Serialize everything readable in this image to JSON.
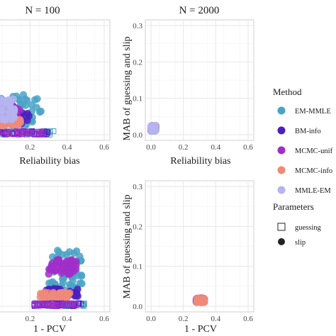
{
  "chart_data": {
    "type": "scatter",
    "strip_titles": [
      "N = 100",
      "N = 2000"
    ],
    "y_axis_label": "MAB of guessing and slip",
    "x_axis_labels": [
      "Reliability bias",
      "1 - PCV"
    ],
    "x_ticks": [
      "0.0",
      "0.2",
      "0.4",
      "0.6"
    ],
    "x_ticks_left_visible": [
      "0",
      "0.2",
      "0.4",
      "0.6"
    ],
    "y_ticks": [
      "0.0",
      "0.1",
      "0.2",
      "0.3"
    ],
    "xlim": [
      0,
      0.6
    ],
    "ylim": [
      0,
      0.3
    ],
    "legend_method": {
      "title": "Method",
      "entries": [
        {
          "label": "EM-MMLE",
          "color": "#4aa3c7"
        },
        {
          "label": "BM-info",
          "color": "#4b1fbf"
        },
        {
          "label": "MCMC-unif",
          "color": "#a02ec8"
        },
        {
          "label": "MCMC-info",
          "color": "#f08a78"
        },
        {
          "label": "MMLE-EM",
          "color": "#b5b3f0"
        }
      ]
    },
    "legend_parameters": {
      "title": "Parameters",
      "entries": [
        {
          "label": "guessing",
          "shape": "square-open"
        },
        {
          "label": "slip",
          "shape": "circle-filled"
        }
      ]
    },
    "panels": [
      {
        "name": "top-left",
        "strip": "N = 100",
        "xlabel": "Reliability bias",
        "clusters": [
          {
            "method": "EM-MMLE",
            "shape": "circle",
            "x": [
              0.0,
              0.26
            ],
            "y": [
              0.02,
              0.11
            ]
          },
          {
            "method": "BM-info",
            "shape": "circle",
            "x": [
              0.0,
              0.2
            ],
            "y": [
              0.03,
              0.06
            ]
          },
          {
            "method": "MCMC-unif",
            "shape": "circle",
            "x": [
              0.0,
              0.15
            ],
            "y": [
              0.04,
              0.08
            ]
          },
          {
            "method": "MCMC-info",
            "shape": "circle",
            "x": [
              0.0,
              0.15
            ],
            "y": [
              0.025,
              0.045
            ]
          },
          {
            "method": "MMLE-EM",
            "shape": "circle",
            "x": [
              0.0,
              0.12
            ],
            "y": [
              0.04,
              0.1
            ]
          },
          {
            "method": "EM-MMLE",
            "shape": "square",
            "x": [
              0.0,
              0.33
            ],
            "y": [
              0.0,
              0.01
            ]
          },
          {
            "method": "BM-info",
            "shape": "square",
            "x": [
              0.0,
              0.3
            ],
            "y": [
              0.0,
              0.01
            ]
          },
          {
            "method": "MCMC-unif",
            "shape": "square",
            "x": [
              0.0,
              0.28
            ],
            "y": [
              0.0,
              0.01
            ]
          }
        ]
      },
      {
        "name": "top-right",
        "strip": "N = 2000",
        "xlabel": "Reliability bias",
        "clusters": [
          {
            "method": "EM-MMLE",
            "shape": "circle",
            "x": [
              0.0,
              0.03
            ],
            "y": [
              0.01,
              0.025
            ]
          },
          {
            "method": "BM-info",
            "shape": "circle",
            "x": [
              0.0,
              0.03
            ],
            "y": [
              0.01,
              0.025
            ]
          },
          {
            "method": "MCMC-unif",
            "shape": "circle",
            "x": [
              0.0,
              0.03
            ],
            "y": [
              0.01,
              0.025
            ]
          },
          {
            "method": "MCMC-info",
            "shape": "circle",
            "x": [
              0.0,
              0.03
            ],
            "y": [
              0.01,
              0.025
            ]
          },
          {
            "method": "MMLE-EM",
            "shape": "circle",
            "x": [
              0.0,
              0.03
            ],
            "y": [
              0.01,
              0.025
            ]
          }
        ]
      },
      {
        "name": "bottom-left",
        "strip": "",
        "xlabel": "1 - PCV",
        "clusters": [
          {
            "method": "EM-MMLE",
            "shape": "circle",
            "x": [
              0.3,
              0.48
            ],
            "y": [
              0.04,
              0.14
            ]
          },
          {
            "method": "MCMC-unif",
            "shape": "circle",
            "x": [
              0.3,
              0.45
            ],
            "y": [
              0.08,
              0.12
            ]
          },
          {
            "method": "BM-info",
            "shape": "circle",
            "x": [
              0.28,
              0.46
            ],
            "y": [
              0.025,
              0.045
            ]
          },
          {
            "method": "MCMC-info",
            "shape": "circle",
            "x": [
              0.25,
              0.42
            ],
            "y": [
              0.01,
              0.035
            ]
          },
          {
            "method": "EM-MMLE",
            "shape": "square",
            "x": [
              0.22,
              0.5
            ],
            "y": [
              0.0,
              0.008
            ]
          },
          {
            "method": "BM-info",
            "shape": "square",
            "x": [
              0.22,
              0.48
            ],
            "y": [
              0.0,
              0.008
            ]
          },
          {
            "method": "MCMC-unif",
            "shape": "square",
            "x": [
              0.22,
              0.45
            ],
            "y": [
              0.0,
              0.008
            ]
          }
        ]
      },
      {
        "name": "bottom-right",
        "strip": "",
        "xlabel": "1 - PCV",
        "clusters": [
          {
            "method": "EM-MMLE",
            "shape": "circle",
            "x": [
              0.28,
              0.33
            ],
            "y": [
              0.01,
              0.02
            ]
          },
          {
            "method": "BM-info",
            "shape": "circle",
            "x": [
              0.28,
              0.33
            ],
            "y": [
              0.01,
              0.02
            ]
          },
          {
            "method": "MCMC-unif",
            "shape": "circle",
            "x": [
              0.28,
              0.33
            ],
            "y": [
              0.01,
              0.02
            ]
          },
          {
            "method": "MCMC-info",
            "shape": "circle",
            "x": [
              0.28,
              0.33
            ],
            "y": [
              0.01,
              0.02
            ]
          }
        ]
      }
    ]
  }
}
